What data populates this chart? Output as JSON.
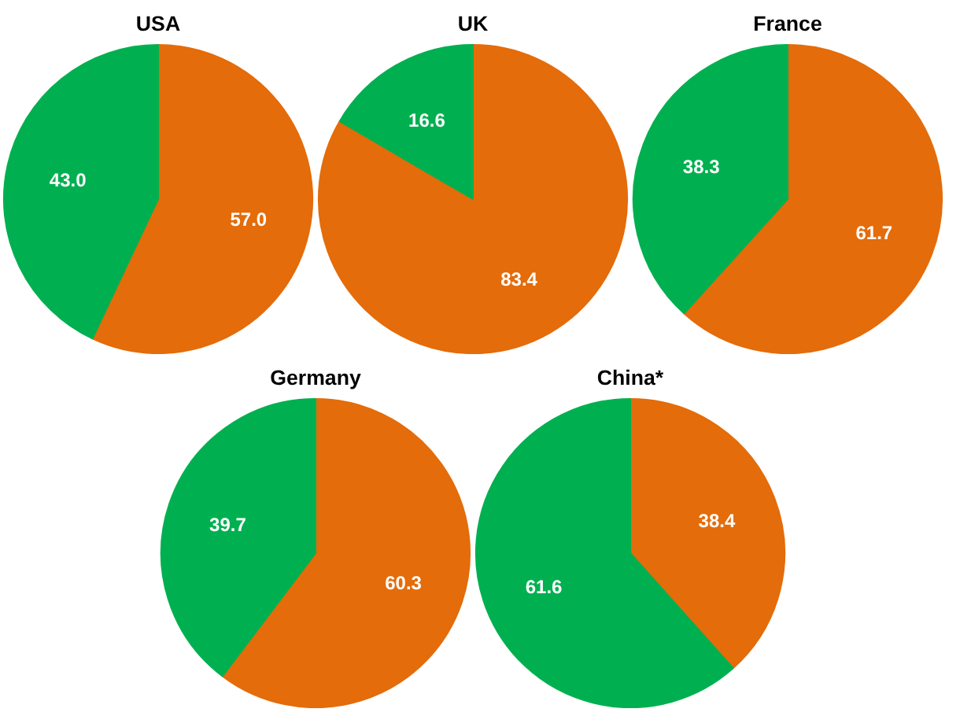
{
  "chart_data": [
    {
      "type": "pie",
      "title": "USA",
      "categories": [
        null,
        null
      ],
      "values": [
        57.0,
        43.0
      ],
      "colors": [
        "#e46c0a",
        "#00b050"
      ],
      "value_labels": [
        "57.0",
        "43.0"
      ]
    },
    {
      "type": "pie",
      "title": "UK",
      "categories": [
        null,
        null
      ],
      "values": [
        83.4,
        16.6
      ],
      "colors": [
        "#e46c0a",
        "#00b050"
      ],
      "value_labels": [
        "83.4",
        "16.6"
      ]
    },
    {
      "type": "pie",
      "title": "France",
      "categories": [
        null,
        null
      ],
      "values": [
        61.7,
        38.3
      ],
      "colors": [
        "#e46c0a",
        "#00b050"
      ],
      "value_labels": [
        "61.7",
        "38.3"
      ]
    },
    {
      "type": "pie",
      "title": "Germany",
      "categories": [
        null,
        null
      ],
      "values": [
        60.3,
        39.7
      ],
      "colors": [
        "#e46c0a",
        "#00b050"
      ],
      "value_labels": [
        "60.3",
        "39.7"
      ]
    },
    {
      "type": "pie",
      "title": "China*",
      "categories": [
        null,
        null
      ],
      "values": [
        38.4,
        61.6
      ],
      "colors": [
        "#e46c0a",
        "#00b050"
      ],
      "value_labels": [
        "38.4",
        "61.6"
      ]
    }
  ]
}
